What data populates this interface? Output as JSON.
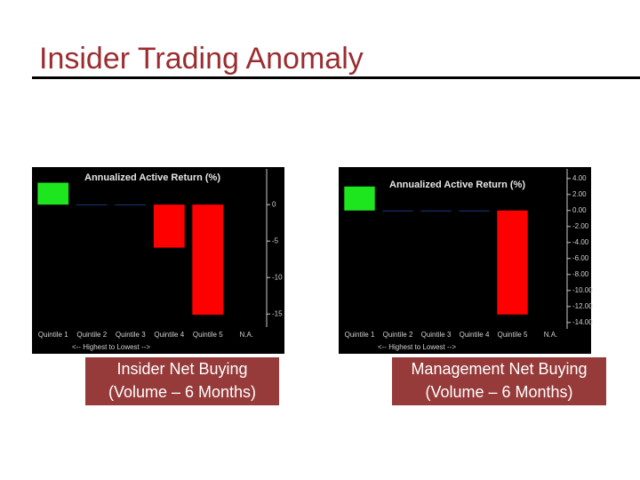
{
  "slide_title": "Insider Trading Anomaly",
  "chart_data": [
    {
      "type": "bar",
      "title": "Annualized Active Return (%)",
      "caption": [
        "Insider Net Buying",
        "(Volume – 6 Months)"
      ],
      "x_label": "<-- Highest to Lowest -->",
      "categories": [
        "Quintile 1",
        "Quintile 2",
        "Quintile 3",
        "Quintile 4",
        "Quintile 5",
        "N.A."
      ],
      "values": [
        3.0,
        -0.1,
        -0.1,
        -5.9,
        -15.1,
        null
      ],
      "colors": [
        "#1ee61e",
        "#22408f",
        "#22408f",
        "#ff0000",
        "#ff0000",
        "#ff0000"
      ],
      "ylim": [
        -16.8,
        4.9
      ],
      "yticks": [
        0,
        -5,
        -10,
        -15
      ],
      "axis_side": "right"
    },
    {
      "type": "bar",
      "title": "Annualized Active Return (%)",
      "caption": [
        "Management Net Buying",
        "(Volume – 6 Months)"
      ],
      "x_label": "<-- Highest to Lowest -->",
      "categories": [
        "Quintile 1",
        "Quintile 2",
        "Quintile 3",
        "Quintile 4",
        "Quintile 5",
        "N.A."
      ],
      "values": [
        3.0,
        -0.1,
        -0.1,
        -0.1,
        -13.0,
        null
      ],
      "colors": [
        "#1ee61e",
        "#22408f",
        "#22408f",
        "#22408f",
        "#ff0000",
        "#ff0000"
      ],
      "ylim": [
        -14.8,
        5.2
      ],
      "yticks": [
        {
          "value": 4,
          "label": "4.00"
        },
        {
          "value": 2,
          "label": "2.00"
        },
        {
          "value": 0,
          "label": "0.00"
        },
        {
          "value": -2,
          "label": "-2.00"
        },
        {
          "value": -4,
          "label": "-4.00"
        },
        {
          "value": -6,
          "label": "-6.00"
        },
        {
          "value": -8,
          "label": "-8.00"
        },
        {
          "value": -10,
          "label": "-10.00"
        },
        {
          "value": -12,
          "label": "-12.00"
        },
        {
          "value": -14,
          "label": "-14.00"
        }
      ],
      "axis_side": "right"
    }
  ]
}
